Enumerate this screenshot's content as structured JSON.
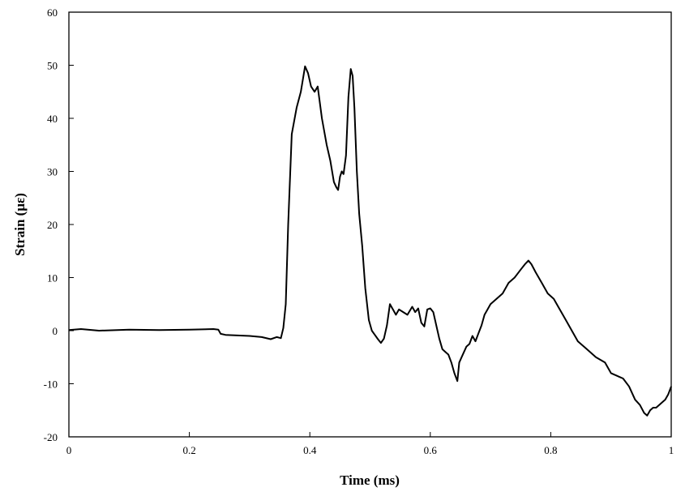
{
  "chart_data": {
    "type": "line",
    "title": "",
    "xlabel": "Time (ms)",
    "ylabel": "Strain (με)",
    "xlim": [
      0,
      1
    ],
    "ylim": [
      -20,
      60
    ],
    "grid": false,
    "legend": "none",
    "x_ticks": [
      0,
      0.2,
      0.4,
      0.6,
      0.8,
      1
    ],
    "x_tick_labels": [
      "0",
      "0.2",
      "0.4",
      "0.6",
      "0.8",
      "1"
    ],
    "y_ticks": [
      -20,
      -10,
      0,
      10,
      20,
      30,
      40,
      50,
      60
    ],
    "y_tick_labels": [
      "-20",
      "-10",
      "0",
      "10",
      "20",
      "30",
      "40",
      "50",
      "60"
    ],
    "series": [
      {
        "color": "#000000",
        "x": [
          0,
          0.02,
          0.05,
          0.1,
          0.15,
          0.2,
          0.24,
          0.248,
          0.252,
          0.26,
          0.3,
          0.32,
          0.335,
          0.345,
          0.352,
          0.356,
          0.36,
          0.364,
          0.37,
          0.378,
          0.385,
          0.392,
          0.397,
          0.402,
          0.408,
          0.413,
          0.42,
          0.428,
          0.434,
          0.44,
          0.444,
          0.447,
          0.45,
          0.453,
          0.456,
          0.46,
          0.464,
          0.468,
          0.471,
          0.474,
          0.478,
          0.482,
          0.487,
          0.492,
          0.498,
          0.503,
          0.508,
          0.513,
          0.518,
          0.523,
          0.528,
          0.533,
          0.538,
          0.543,
          0.548,
          0.555,
          0.562,
          0.57,
          0.575,
          0.58,
          0.585,
          0.59,
          0.595,
          0.6,
          0.605,
          0.61,
          0.615,
          0.62,
          0.625,
          0.63,
          0.635,
          0.64,
          0.645,
          0.648,
          0.652,
          0.656,
          0.66,
          0.665,
          0.67,
          0.675,
          0.68,
          0.685,
          0.69,
          0.7,
          0.71,
          0.72,
          0.73,
          0.74,
          0.75,
          0.757,
          0.763,
          0.768,
          0.775,
          0.785,
          0.795,
          0.805,
          0.815,
          0.825,
          0.835,
          0.845,
          0.86,
          0.875,
          0.89,
          0.9,
          0.91,
          0.92,
          0.93,
          0.94,
          0.948,
          0.955,
          0.96,
          0.965,
          0.97,
          0.975,
          0.98,
          0.985,
          0.99,
          0.995,
          1.0
        ],
        "y": [
          0.1,
          0.3,
          0.0,
          0.2,
          0.1,
          0.2,
          0.3,
          0.2,
          -0.6,
          -0.8,
          -1.0,
          -1.2,
          -1.6,
          -1.2,
          -1.4,
          0.5,
          5,
          20,
          37,
          42,
          45,
          49.8,
          48.5,
          46,
          45,
          46,
          40,
          35,
          32,
          28,
          27,
          26.5,
          29,
          30,
          29.5,
          33,
          44,
          49.3,
          48,
          42,
          30,
          22,
          16,
          8,
          2,
          0,
          -0.8,
          -1.6,
          -2.3,
          -1.5,
          1,
          5,
          4,
          3,
          4,
          3.5,
          3,
          4.5,
          3.5,
          4.2,
          1.5,
          0.8,
          4,
          4.2,
          3.5,
          1,
          -1.5,
          -3.5,
          -4,
          -4.5,
          -6,
          -8,
          -9.5,
          -6,
          -5,
          -4,
          -3,
          -2.5,
          -1,
          -2,
          -0.5,
          1,
          3,
          5,
          6,
          7,
          9,
          10,
          11.5,
          12.5,
          13.2,
          12.5,
          11,
          9,
          7,
          6,
          4,
          2,
          0,
          -2,
          -3.5,
          -5,
          -6,
          -8,
          -8.5,
          -9,
          -10.5,
          -13,
          -14,
          -15.5,
          -16,
          -15,
          -14.5,
          -14.5,
          -14,
          -13.5,
          -13,
          -12,
          -10.5
        ]
      }
    ]
  }
}
